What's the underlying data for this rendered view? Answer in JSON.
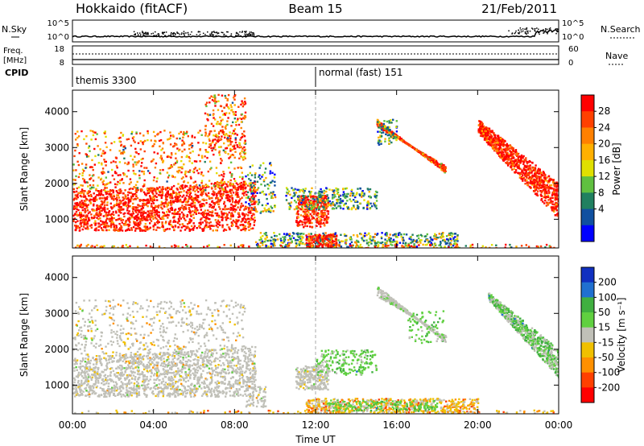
{
  "header": {
    "station": "Hokkaido (fitACF)",
    "beam": "Beam 15",
    "date": "21/Feb/2011"
  },
  "strip_nsky": {
    "left_label": "N.Sky",
    "right_label": "N.Search",
    "yticks": [
      "10^5",
      "10^0"
    ]
  },
  "strip_freq": {
    "left_label_1": "Freq.",
    "left_label_2": "[MHz]",
    "right_label": "Nave",
    "left_ticks": [
      "18",
      "8"
    ],
    "right_ticks": [
      "60",
      "0"
    ]
  },
  "strip_cpid": {
    "label": "CPID",
    "programs": [
      {
        "name": "themis 3300",
        "start_hour": 0
      },
      {
        "name": "normal (fast) 151",
        "start_hour": 12
      }
    ]
  },
  "chart_data": [
    {
      "type": "heatmap",
      "panel": "power",
      "ylabel": "Slant Range [km]",
      "xlabel": "Time UT",
      "xlim": [
        0,
        24
      ],
      "ylim": [
        200,
        4600
      ],
      "xticks": [
        "00:00",
        "04:00",
        "08:00",
        "12:00",
        "16:00",
        "20:00",
        "00:00"
      ],
      "yticks": [
        1000,
        2000,
        3000,
        4000
      ],
      "colorbar": {
        "label": "Power [dB]",
        "ticks": [
          "28",
          "24",
          "20",
          "16",
          "12",
          "8",
          "4"
        ],
        "colors": [
          "#ff0000",
          "#ff4000",
          "#ff8000",
          "#ffb000",
          "#e0e000",
          "#60c040",
          "#208060",
          "#1050a0",
          "#0000ff"
        ]
      }
    },
    {
      "type": "heatmap",
      "panel": "velocity",
      "ylabel": "Slant Range [km]",
      "xlabel": "Time UT",
      "xlim": [
        0,
        24
      ],
      "ylim": [
        200,
        4600
      ],
      "xticks": [
        "00:00",
        "04:00",
        "08:00",
        "12:00",
        "16:00",
        "20:00",
        "00:00"
      ],
      "yticks": [
        1000,
        2000,
        3000,
        4000
      ],
      "colorbar": {
        "label": "Velocity [m s⁻¹]",
        "ticks": [
          "200",
          "100",
          "50",
          "15",
          "-15",
          "-50",
          "-100",
          "-200"
        ],
        "colors": [
          "#1030c0",
          "#2070d0",
          "#40b040",
          "#60d040",
          "#c0c0b8",
          "#f0c000",
          "#ff9000",
          "#ff4000",
          "#ff0000"
        ]
      }
    }
  ],
  "colors": {
    "power_hot": "#ff2000",
    "power_warm": "#ff9000",
    "power_cool": "#1040c0",
    "velocity_gray": "#c0c0b8",
    "velocity_green": "#60d040",
    "velocity_orange": "#f0a000"
  }
}
